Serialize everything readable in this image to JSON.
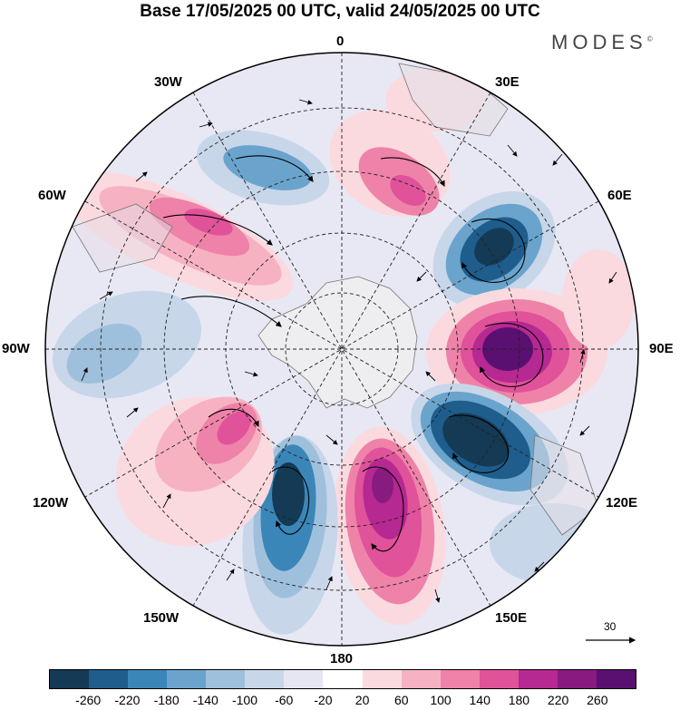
{
  "title": "Base 17/05/2025 00 UTC, valid 24/05/2025 00 UTC",
  "brand": "MODES",
  "brand_mark": "©",
  "longitude_labels": {
    "lon_0": "0",
    "lon_30e": "30E",
    "lon_60e": "60E",
    "lon_90e": "90E",
    "lon_120e": "120E",
    "lon_150e": "150E",
    "lon_180": "180",
    "lon_150w": "150W",
    "lon_120w": "120W",
    "lon_90w": "90W",
    "lon_60w": "60W",
    "lon_30w": "30W"
  },
  "reference_vector": {
    "label": "30"
  },
  "colorbar": {
    "tick_labels": [
      "-260",
      "-220",
      "-180",
      "-140",
      "-100",
      "-60",
      "-20",
      "20",
      "60",
      "100",
      "140",
      "180",
      "220",
      "260"
    ],
    "colors": [
      "#143a55",
      "#1e5d8c",
      "#3b86b8",
      "#6aa4cc",
      "#9fc0dc",
      "#c8d6ea",
      "#e6e6f3",
      "#ffffff",
      "#fbdadf",
      "#f7b2c2",
      "#ef82a8",
      "#e0529a",
      "#b62892",
      "#881a80",
      "#5a1070"
    ]
  },
  "chart_data": {
    "type": "heatmap",
    "projection": "south polar stereographic",
    "field": "anomaly with wind vectors",
    "colorbar_levels": [
      -260,
      -220,
      -180,
      -140,
      -100,
      -60,
      -20,
      20,
      60,
      100,
      140,
      180,
      220,
      260
    ],
    "centers": [
      {
        "lon": "50E",
        "sign": "negative",
        "value": -220
      },
      {
        "lon": "90E",
        "sign": "positive",
        "value": 240
      },
      {
        "lon": "115E",
        "sign": "negative",
        "value": -230
      },
      {
        "lon": "165E",
        "sign": "positive",
        "value": 220
      },
      {
        "lon": "165W",
        "sign": "negative",
        "value": -200
      },
      {
        "lon": "130W",
        "sign": "positive",
        "value": 160
      },
      {
        "lon": "60W",
        "sign": "positive",
        "value": 130
      },
      {
        "lon": "25W",
        "sign": "negative",
        "value": -120
      },
      {
        "lon": "20E",
        "sign": "positive",
        "value": 120
      },
      {
        "lon": "90W",
        "sign": "negative",
        "value": -80
      }
    ]
  }
}
